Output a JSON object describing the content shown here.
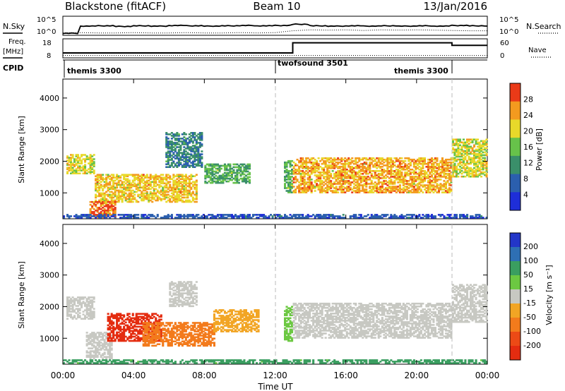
{
  "header": {
    "station": "Blackstone (fitACF)",
    "beam": "Beam 10",
    "date": "13/Jan/2016"
  },
  "chart_data": [
    {
      "type": "line",
      "panel": "noise",
      "left_label": "N.Sky",
      "right_label": "N.Search",
      "left_ticks": [
        "10^5",
        "10^0"
      ],
      "right_ticks": [
        "10^5",
        "10^0"
      ],
      "scale": "log",
      "x": [
        "00:00",
        "01:00",
        "02:00",
        "03:00",
        "04:00",
        "05:00",
        "06:00",
        "07:00",
        "08:00",
        "09:00",
        "10:00",
        "11:00",
        "12:00",
        "13:00",
        "14:00",
        "15:00",
        "16:00",
        "17:00",
        "18:00",
        "19:00",
        "20:00",
        "21:00",
        "22:00",
        "23:00",
        "24:00"
      ],
      "series": [
        {
          "name": "N.Sky",
          "values": [
            0.2,
            2.5,
            2.6,
            2.4,
            2.6,
            2.5,
            2.7,
            2.6,
            2.5,
            2.6,
            2.7,
            2.6,
            2.7,
            3.1,
            2.6,
            2.5,
            2.6,
            2.5,
            2.6,
            2.5,
            2.6,
            2.5,
            2.7,
            2.6,
            2.5
          ]
        },
        {
          "name": "N.Search",
          "values": [
            0.3,
            0.4,
            0.3,
            0.3,
            0.4,
            0.3,
            0.3,
            0.4,
            0.3,
            0.3,
            0.4,
            0.3,
            0.4,
            1.0,
            1.3,
            1.2,
            1.3,
            1.1,
            1.3,
            1.2,
            1.3,
            1.2,
            1.1,
            1.0,
            1.0
          ]
        }
      ]
    },
    {
      "type": "line",
      "panel": "frequency",
      "left_label": "Freq.",
      "left_unit": "[MHz]",
      "left_ticks": [
        "18",
        "8"
      ],
      "right_label": "Nave",
      "right_ticks": [
        "60",
        "0"
      ],
      "x": [
        "00:00",
        "01:00",
        "02:00",
        "03:00",
        "04:00",
        "05:00",
        "06:00",
        "07:00",
        "08:00",
        "09:00",
        "10:00",
        "11:00",
        "12:00",
        "13:00",
        "14:00",
        "15:00",
        "16:00",
        "17:00",
        "18:00",
        "19:00",
        "20:00",
        "21:00",
        "22:00",
        "23:00",
        "24:00"
      ],
      "series": [
        {
          "name": "Freq.",
          "values": [
            10.5,
            10.5,
            10.5,
            10.5,
            10.5,
            10.5,
            10.5,
            10.5,
            10.5,
            10.5,
            10.5,
            10.5,
            10.5,
            16.5,
            16.5,
            16.5,
            16.5,
            16.5,
            16.5,
            16.5,
            16.5,
            16.5,
            15,
            15,
            15
          ]
        },
        {
          "name": "Nave",
          "values": [
            6,
            6,
            6,
            6,
            6,
            6,
            6,
            6,
            6,
            6,
            6,
            6,
            6,
            6,
            6,
            6,
            6,
            6,
            6,
            6,
            6,
            6,
            6,
            6,
            6
          ]
        }
      ]
    },
    {
      "type": "table",
      "panel": "cpid",
      "label": "CPID",
      "segments": [
        {
          "name": "themis 3300",
          "start": "00:00",
          "end": "12:00"
        },
        {
          "name": "twofsound 3501",
          "start": "12:00",
          "end": "22:00"
        },
        {
          "name": "themis 3300",
          "start": "22:00",
          "end": "24:00"
        }
      ]
    },
    {
      "type": "heatmap",
      "panel": "power",
      "ylabel": "Slant Range [km]",
      "yticks": [
        1000,
        2000,
        3000,
        4000
      ],
      "ylim": [
        180,
        4600
      ],
      "xlim": [
        "00:00",
        "24:00"
      ],
      "colorbar_label": "Power [dB]",
      "colorbar_ticks": [
        4,
        8,
        12,
        16,
        20,
        24,
        28
      ],
      "colorbar_range": [
        0,
        32
      ],
      "colors": [
        "#1e2ed8",
        "#2b5fae",
        "#3a8f6a",
        "#67c24a",
        "#e8d92a",
        "#f39a1f",
        "#ea3a18"
      ],
      "regions": [
        {
          "t0": 0.2,
          "t1": 1.8,
          "r0": 1600,
          "r1": 2200,
          "level": 20
        },
        {
          "t0": 1.8,
          "t1": 7.5,
          "r0": 700,
          "r1": 1600,
          "level": 22
        },
        {
          "t0": 1.5,
          "t1": 3.0,
          "r0": 200,
          "r1": 700,
          "level": 28
        },
        {
          "t0": 5.8,
          "t1": 7.8,
          "r0": 1800,
          "r1": 2900,
          "level": 10
        },
        {
          "t0": 8.0,
          "t1": 10.5,
          "r0": 1300,
          "r1": 1900,
          "level": 14
        },
        {
          "t0": 12.5,
          "t1": 12.9,
          "r0": 1000,
          "r1": 2000,
          "level": 14
        },
        {
          "t0": 13.0,
          "t1": 22.0,
          "r0": 1000,
          "r1": 2100,
          "level": 24
        },
        {
          "t0": 22.0,
          "t1": 24.0,
          "r0": 1500,
          "r1": 2700,
          "level": 20
        },
        {
          "t0": 0.0,
          "t1": 24.0,
          "r0": 200,
          "r1": 330,
          "level": 6
        }
      ]
    },
    {
      "type": "heatmap",
      "panel": "velocity",
      "ylabel": "Slant Range [km]",
      "yticks": [
        1000,
        2000,
        3000,
        4000
      ],
      "ylim": [
        180,
        4600
      ],
      "xlim": [
        "00:00",
        "24:00"
      ],
      "xticks": [
        "00:00",
        "04:00",
        "08:00",
        "12:00",
        "16:00",
        "20:00",
        "00:00"
      ],
      "xlabel": "Time UT",
      "colorbar_label": "Velocity [m s⁻¹]",
      "colorbar_ticks": [
        200,
        100,
        50,
        15,
        -15,
        -50,
        -100,
        -200
      ],
      "colors": [
        "#2336c8",
        "#2e6fb4",
        "#3a9e60",
        "#6cc842",
        "#c7c8c2",
        "#f2a524",
        "#f37b1c",
        "#ec4a16",
        "#e42c10"
      ],
      "regions": [
        {
          "t0": 0.2,
          "t1": 1.8,
          "r0": 1600,
          "r1": 2300,
          "velocity": 0
        },
        {
          "t0": 1.3,
          "t1": 2.8,
          "r0": 350,
          "r1": 1200,
          "velocity": 0
        },
        {
          "t0": 2.5,
          "t1": 5.5,
          "r0": 900,
          "r1": 1800,
          "velocity": -200
        },
        {
          "t0": 4.5,
          "t1": 8.5,
          "r0": 750,
          "r1": 1500,
          "velocity": -80
        },
        {
          "t0": 6.0,
          "t1": 7.5,
          "r0": 2000,
          "r1": 2800,
          "velocity": 0
        },
        {
          "t0": 8.5,
          "t1": 11.0,
          "r0": 1200,
          "r1": 1900,
          "velocity": -40
        },
        {
          "t0": 12.5,
          "t1": 12.9,
          "r0": 900,
          "r1": 2000,
          "velocity": 20
        },
        {
          "t0": 13.0,
          "t1": 22.0,
          "r0": 1000,
          "r1": 2100,
          "velocity": 0
        },
        {
          "t0": 22.0,
          "t1": 24.0,
          "r0": 1500,
          "r1": 2700,
          "velocity": 0
        },
        {
          "t0": 0.0,
          "t1": 24.0,
          "r0": 200,
          "r1": 320,
          "velocity": 40
        }
      ]
    }
  ]
}
